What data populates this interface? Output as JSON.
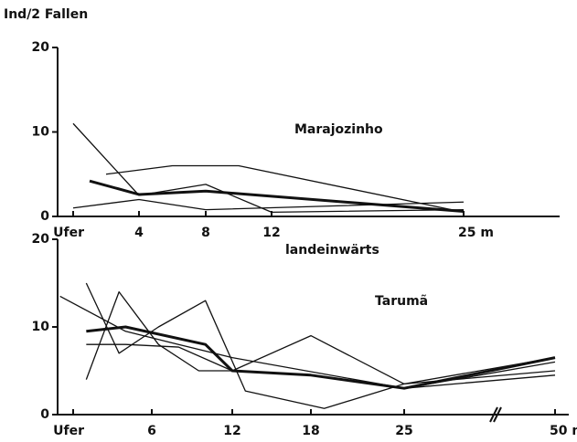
{
  "chart_data": [
    {
      "type": "line",
      "ylabel": "Ind/2 Fallen",
      "annotation": "Marajozinho",
      "xlabel": "landeinwärts",
      "ylim": [
        0,
        20
      ],
      "yticks": [
        0,
        10,
        20
      ],
      "xticks": [
        {
          "value": 0,
          "label": "Ufer"
        },
        4,
        8,
        12,
        {
          "value": 25,
          "label": "25 m"
        }
      ],
      "series": [
        {
          "color": "#111",
          "line_width": 1.3,
          "x": [
            0,
            4,
            8,
            12,
            25
          ],
          "values": [
            11,
            2.5,
            3.8,
            0.5,
            0.8
          ]
        },
        {
          "color": "#111",
          "line_width": 1.3,
          "x": [
            2,
            6,
            10,
            25
          ],
          "values": [
            5,
            6,
            6,
            0.5
          ]
        },
        {
          "color": "#111",
          "line_width": 3,
          "x": [
            1,
            4,
            8,
            25
          ],
          "values": [
            4.2,
            2.6,
            3,
            0.6
          ]
        },
        {
          "color": "#111",
          "line_width": 1.3,
          "x": [
            0,
            4,
            8,
            25
          ],
          "values": [
            1,
            2,
            0.8,
            1.7
          ]
        }
      ]
    },
    {
      "type": "line",
      "annotation": "Tarumã",
      "ylim": [
        0,
        20
      ],
      "yticks": [
        0,
        10,
        20
      ],
      "xticks": [
        {
          "value": 0,
          "label": "Ufer"
        },
        6,
        12,
        18,
        25,
        {
          "value": 50,
          "label": "50 m"
        }
      ],
      "series": [
        {
          "color": "#111",
          "line_width": 1.3,
          "x": [
            -1,
            4,
            8,
            12,
            25,
            50
          ],
          "values": [
            13.5,
            9.5,
            8,
            6.5,
            3,
            6
          ]
        },
        {
          "color": "#111",
          "line_width": 1.3,
          "x": [
            1,
            3.5,
            6.5,
            9.5,
            12,
            18,
            25,
            50
          ],
          "values": [
            4,
            14,
            8,
            5,
            5,
            4.5,
            3,
            4.5
          ]
        },
        {
          "color": "#111",
          "line_width": 1.3,
          "x": [
            1,
            3.5,
            6.5,
            10,
            13,
            19,
            25,
            50
          ],
          "values": [
            15,
            7,
            10,
            13,
            2.7,
            0.7,
            3.5,
            6.5
          ]
        },
        {
          "color": "#111",
          "line_width": 3,
          "x": [
            1,
            4,
            10,
            12,
            18,
            25,
            50
          ],
          "values": [
            9.5,
            10,
            8,
            5,
            4.5,
            3,
            6.5
          ]
        },
        {
          "color": "#111",
          "line_width": 1.3,
          "x": [
            1,
            4,
            8,
            12,
            18,
            25,
            50
          ],
          "values": [
            8,
            8,
            7.7,
            5,
            9,
            3.5,
            5
          ]
        }
      ]
    }
  ]
}
